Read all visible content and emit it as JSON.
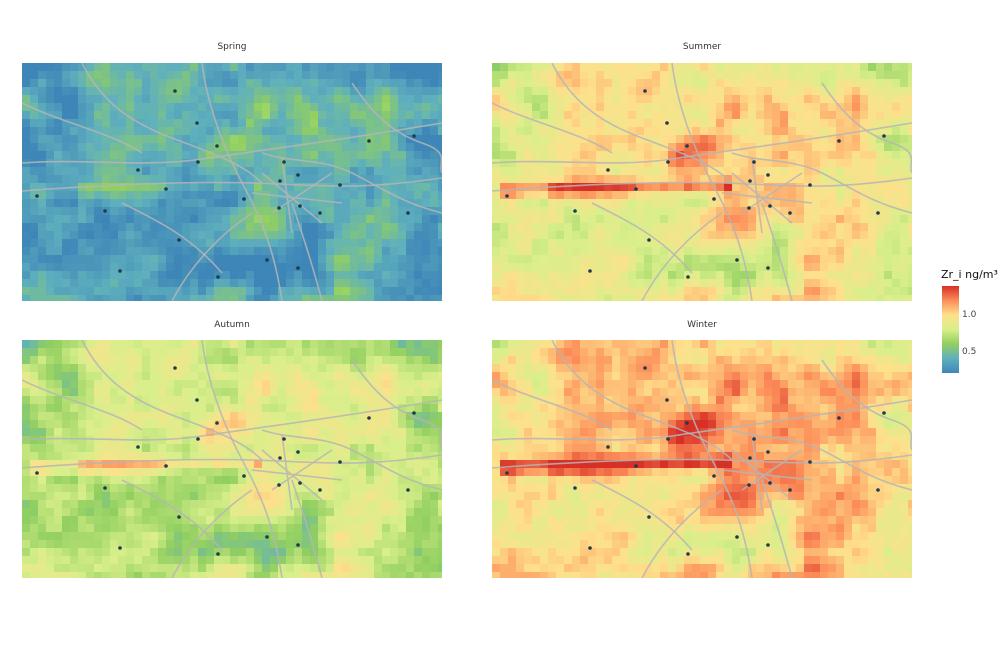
{
  "legend": {
    "title": "Zr_i ng/m³",
    "ticks": [
      "1.0",
      "0.5"
    ],
    "colors": [
      "#d73027",
      "#fc8d59",
      "#fee08b",
      "#d9ef8b",
      "#91cf60",
      "#5fb0bd",
      "#3e86b8"
    ]
  },
  "panels": [
    {
      "title": "Spring",
      "intensity": 0.25
    },
    {
      "title": "Summer",
      "intensity": 0.65
    },
    {
      "title": "Autumn",
      "intensity": 0.5
    },
    {
      "title": "Winter",
      "intensity": 0.75
    }
  ],
  "style": {
    "road_color": "#b5b5b5",
    "station_color": "#1f3b4d"
  }
}
